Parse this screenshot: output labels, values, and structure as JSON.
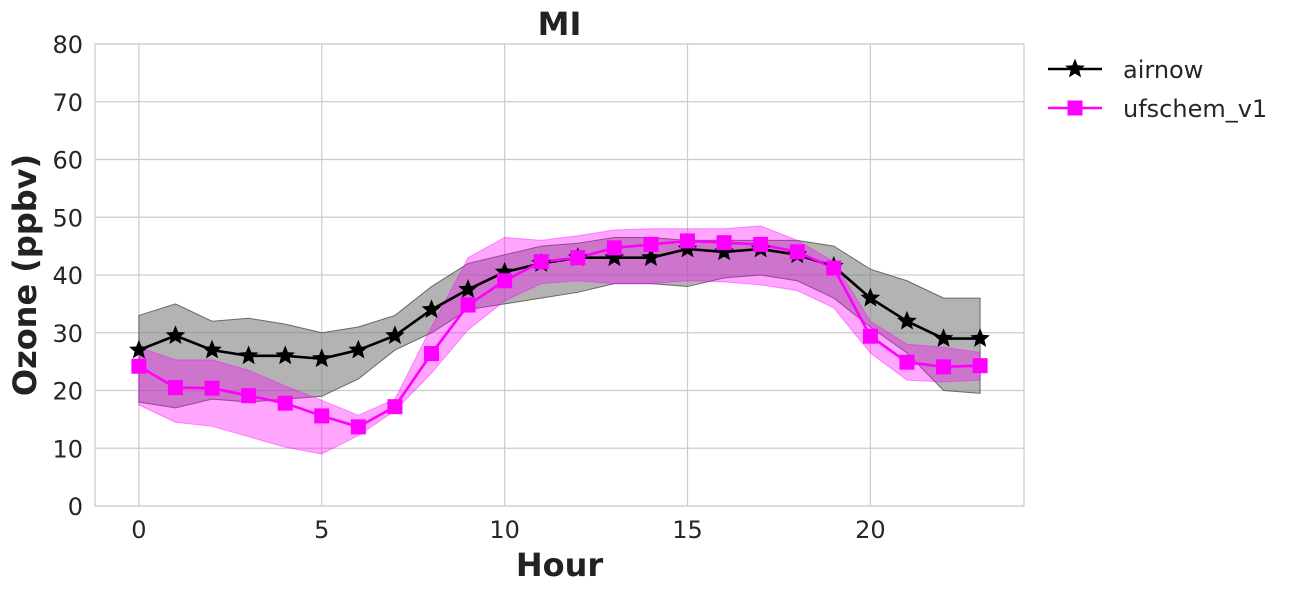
{
  "chart_data": {
    "type": "line",
    "title": "MI",
    "xlabel": "Hour",
    "ylabel": "Ozone (ppbv)",
    "xlim": [
      -1.2,
      24.2
    ],
    "ylim": [
      0,
      80
    ],
    "xticks": [
      0,
      5,
      10,
      15,
      20
    ],
    "yticks": [
      0,
      10,
      20,
      30,
      40,
      50,
      60,
      70,
      80
    ],
    "grid": true,
    "legend_position": "outside-top-right",
    "x": [
      0,
      1,
      2,
      3,
      4,
      5,
      6,
      7,
      8,
      9,
      10,
      11,
      12,
      13,
      14,
      15,
      16,
      17,
      18,
      19,
      20,
      21,
      22,
      23
    ],
    "series": [
      {
        "name": "airnow",
        "color": "#000000",
        "band_color": "#808080",
        "marker": "star",
        "values": [
          27,
          29.5,
          27,
          26,
          26,
          25.5,
          27,
          29.5,
          34,
          37.5,
          40.5,
          42,
          43,
          43,
          43,
          44.5,
          44,
          44.5,
          43.5,
          41.5,
          36,
          32,
          29,
          29
        ],
        "lower": [
          18,
          17,
          18.5,
          18,
          18.5,
          19,
          22,
          27,
          30,
          34,
          35,
          36,
          37,
          38.5,
          38.5,
          38,
          39.5,
          40,
          39,
          36,
          31,
          26.5,
          20,
          19.5
        ],
        "upper": [
          33,
          35,
          32,
          32.5,
          31.5,
          30,
          31,
          33,
          38,
          42,
          43.5,
          45,
          45.5,
          46.5,
          46.5,
          46,
          46,
          46,
          46,
          45,
          41,
          39,
          36,
          36
        ]
      },
      {
        "name": "ufschem_v1",
        "color": "#ff00ff",
        "band_color": "#ff00ff",
        "marker": "square",
        "values": [
          24.2,
          20.5,
          20.4,
          19.1,
          17.8,
          15.6,
          13.7,
          17.2,
          26.4,
          34.8,
          39,
          42.3,
          43,
          44.7,
          45.3,
          45.9,
          45.6,
          45.3,
          44,
          41.2,
          29.4,
          24.9,
          24.1,
          24.3
        ],
        "lower": [
          17.5,
          14.5,
          13.8,
          12,
          10.2,
          9,
          12.2,
          16.5,
          23,
          30.5,
          35.5,
          38.5,
          39,
          38.5,
          38.5,
          39,
          38.8,
          38.3,
          37.3,
          34.3,
          26.5,
          21.8,
          21.5,
          21.8
        ],
        "upper": [
          27.5,
          25.3,
          25.3,
          23.5,
          20.8,
          18.3,
          15.7,
          18.5,
          31,
          43,
          46.5,
          46,
          46.8,
          47.8,
          48,
          48,
          48,
          48.5,
          46,
          42.3,
          32,
          28,
          27.5,
          26.6
        ]
      }
    ]
  }
}
